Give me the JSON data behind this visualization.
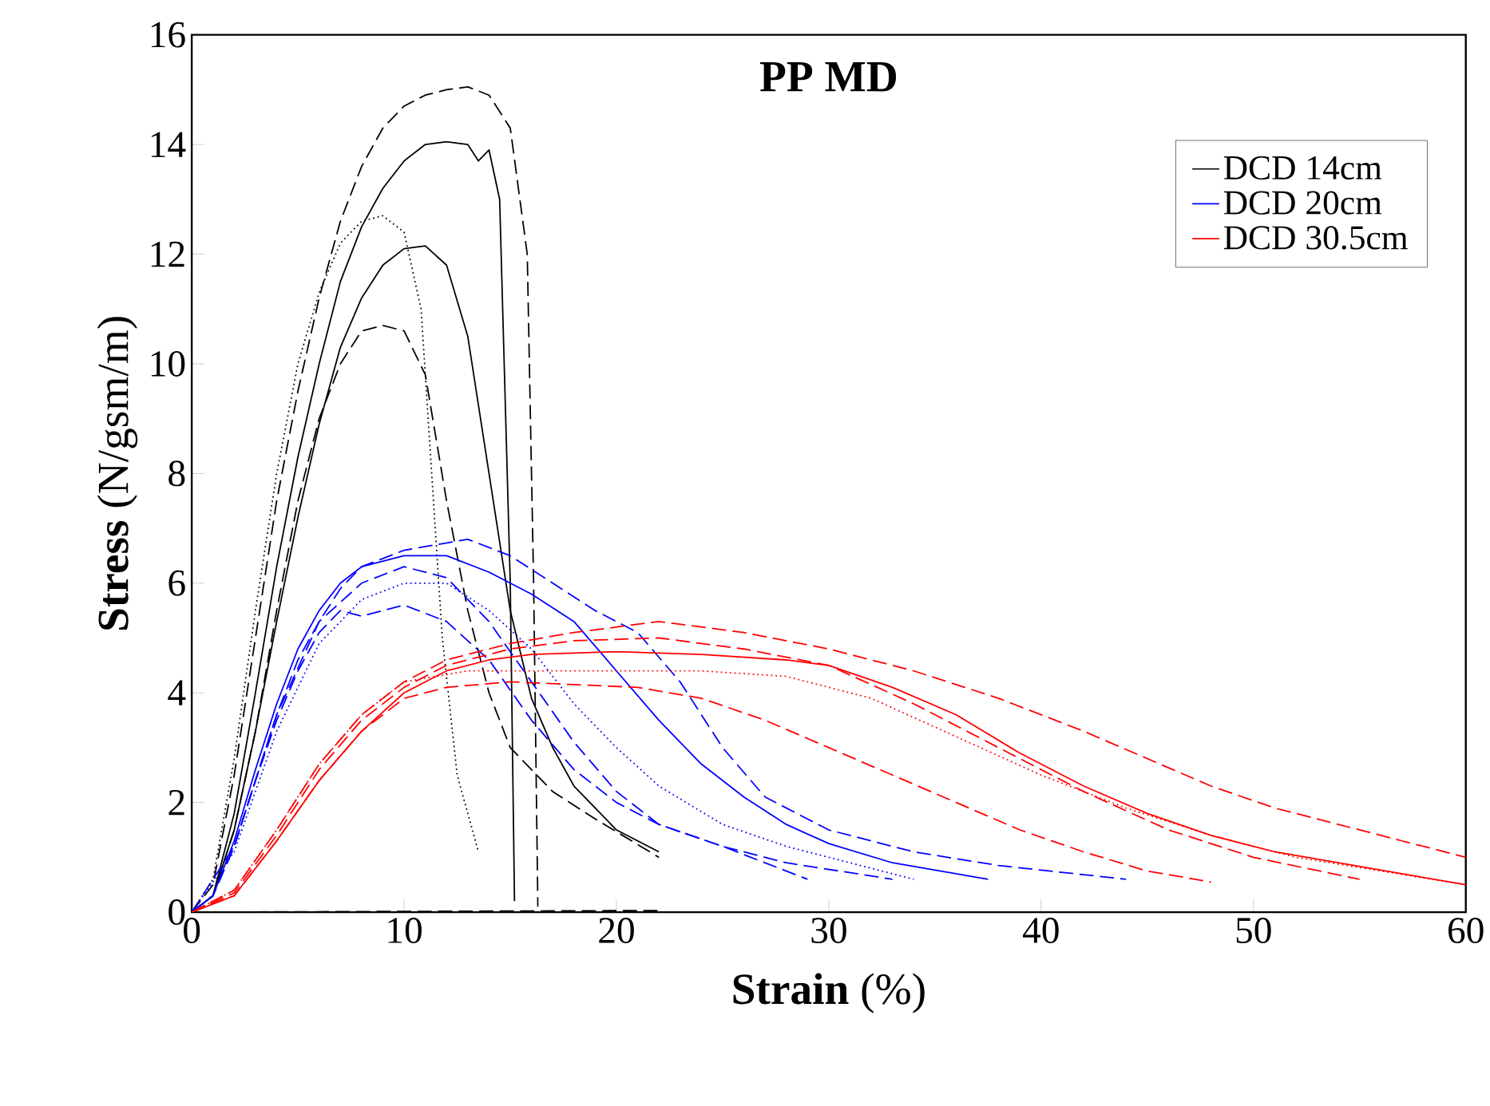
{
  "chart_data": {
    "type": "line",
    "title": "PP MD",
    "xlabel": "**Strain** (%)",
    "ylabel": "**Stress** (N/gsm/m)",
    "xlim": [
      0,
      60
    ],
    "ylim": [
      0,
      16
    ],
    "xticks": [
      0,
      10,
      20,
      30,
      40,
      50,
      60
    ],
    "yticks": [
      0,
      2,
      4,
      6,
      8,
      10,
      12,
      14,
      16
    ],
    "legend": "top right",
    "grid": false,
    "marker": "none",
    "series": [
      {
        "name": "DCD 14cm",
        "color": "#000000",
        "line_style": "solid",
        "x": [
          0,
          1,
          2,
          3,
          4,
          5,
          6,
          7,
          8,
          9,
          10,
          11,
          12,
          13,
          13.5,
          14,
          14.5,
          15,
          15.2
        ],
        "values": [
          0,
          0.3,
          1.8,
          4,
          6.3,
          8.3,
          10,
          11.5,
          12.5,
          13.2,
          13.7,
          14,
          14.05,
          14,
          13.7,
          13.9,
          13,
          6,
          0.2
        ]
      },
      {
        "color": "#000000",
        "line_style": "dashed",
        "x": [
          0,
          1,
          2,
          3,
          4,
          5,
          6,
          7,
          8,
          9,
          10,
          11,
          12,
          13,
          14,
          15,
          15.8,
          16.1,
          16.3
        ],
        "values": [
          0,
          0.5,
          2.5,
          5,
          7.5,
          9.5,
          11.2,
          12.6,
          13.6,
          14.3,
          14.7,
          14.9,
          15,
          15.05,
          14.9,
          14.3,
          12,
          6,
          0.1
        ]
      },
      {
        "color": "#000000",
        "line_style": "solid",
        "x": [
          0,
          1,
          2,
          3,
          4,
          5,
          6,
          7,
          8,
          9,
          10,
          11,
          12,
          13,
          14,
          15,
          16,
          17,
          18,
          20,
          22
        ],
        "values": [
          0,
          0.3,
          1.5,
          3.3,
          5.3,
          7.2,
          8.9,
          10.3,
          11.2,
          11.8,
          12.1,
          12.15,
          11.8,
          10.5,
          8,
          5.5,
          3.9,
          3,
          2.3,
          1.5,
          1.1
        ]
      },
      {
        "color": "#000000",
        "line_style": "dotted",
        "x": [
          0,
          1,
          2,
          3,
          4,
          5,
          6,
          7,
          8,
          9,
          10,
          10.8,
          11.3,
          11.8,
          12.5,
          13.5
        ],
        "values": [
          0,
          0.6,
          2.8,
          5.5,
          8,
          10,
          11.3,
          12.2,
          12.6,
          12.7,
          12.4,
          11,
          8,
          5,
          2.5,
          1.1
        ]
      },
      {
        "color": "#000000",
        "line_style": "dashed",
        "x": [
          0,
          1,
          2,
          3,
          4,
          5,
          6,
          7,
          8,
          9,
          10,
          11,
          12,
          13,
          14,
          15,
          17,
          19,
          22
        ],
        "values": [
          0,
          0.3,
          1.5,
          3.3,
          5.5,
          7.5,
          9,
          10,
          10.6,
          10.7,
          10.6,
          9.8,
          7.5,
          5.5,
          4,
          3,
          2.2,
          1.7,
          1
        ]
      },
      {
        "color": "#000000",
        "line_style": "dashed",
        "x": [
          0,
          22
        ],
        "values": [
          0,
          0.03
        ]
      },
      {
        "name": "DCD 20cm",
        "color": "#0000ff",
        "line_style": "solid",
        "x": [
          0,
          1,
          2,
          3,
          4,
          5,
          6,
          7,
          8,
          10,
          12,
          14,
          16,
          18,
          20,
          22,
          24,
          26,
          28,
          30,
          33,
          37.5
        ],
        "values": [
          0,
          0.3,
          1.3,
          2.6,
          3.8,
          4.8,
          5.5,
          6,
          6.3,
          6.5,
          6.5,
          6.2,
          5.8,
          5.3,
          4.4,
          3.5,
          2.7,
          2.1,
          1.6,
          1.25,
          0.9,
          0.6
        ]
      },
      {
        "color": "#0000ff",
        "line_style": "dashed",
        "x": [
          0,
          1,
          2,
          3,
          4,
          5,
          6,
          7,
          8,
          10,
          13,
          15,
          17,
          19,
          21,
          23,
          25,
          27,
          30,
          34,
          38,
          44
        ],
        "values": [
          0,
          0.3,
          1.2,
          2.4,
          3.6,
          4.6,
          5.3,
          5.9,
          6.3,
          6.6,
          6.8,
          6.5,
          6,
          5.5,
          5.1,
          4.2,
          3,
          2.1,
          1.5,
          1.1,
          0.85,
          0.6
        ]
      },
      {
        "color": "#0000ff",
        "line_style": "dashed",
        "x": [
          0,
          1,
          2,
          3,
          4,
          5,
          6,
          7,
          8,
          10,
          12,
          14,
          16,
          18,
          20,
          22,
          25,
          29
        ],
        "values": [
          0,
          0.3,
          1.2,
          2.4,
          3.5,
          4.4,
          5.1,
          5.5,
          5.4,
          5.6,
          5.3,
          4.6,
          3.5,
          2.6,
          2,
          1.6,
          1.2,
          0.6
        ]
      },
      {
        "color": "#0000ff",
        "line_style": "dotted",
        "x": [
          0,
          2,
          4,
          6,
          8,
          10,
          12,
          14,
          16,
          18,
          20,
          22,
          25,
          28,
          31,
          34
        ],
        "values": [
          0,
          1.1,
          3.3,
          4.9,
          5.7,
          6,
          6,
          5.5,
          4.8,
          3.8,
          3,
          2.3,
          1.6,
          1.2,
          0.9,
          0.6
        ]
      },
      {
        "color": "#0000ff",
        "line_style": "dashed",
        "x": [
          0,
          2,
          4,
          6,
          8,
          10,
          12,
          14,
          16,
          18,
          20,
          22,
          25,
          28,
          33
        ],
        "values": [
          0,
          1.2,
          3.6,
          5.3,
          6,
          6.3,
          6.1,
          5.3,
          4.2,
          3.1,
          2.2,
          1.6,
          1.2,
          0.9,
          0.6
        ]
      },
      {
        "name": "DCD 30.5cm",
        "color": "#ff0000",
        "line_style": "solid",
        "x": [
          0,
          2,
          4,
          6,
          8,
          10,
          12,
          14,
          16,
          20,
          24,
          28,
          30,
          33,
          36,
          39,
          42,
          45,
          48,
          51,
          54,
          57,
          60
        ],
        "values": [
          0,
          0.3,
          1.3,
          2.4,
          3.3,
          4,
          4.4,
          4.6,
          4.7,
          4.75,
          4.7,
          4.6,
          4.5,
          4.1,
          3.6,
          2.9,
          2.3,
          1.8,
          1.4,
          1.1,
          0.9,
          0.7,
          0.5
        ]
      },
      {
        "color": "#ff0000",
        "line_style": "dashed",
        "x": [
          0,
          2,
          4,
          6,
          8,
          10,
          12,
          15,
          18,
          22,
          26,
          30,
          34,
          38,
          42,
          45,
          48,
          51,
          54,
          57,
          60
        ],
        "values": [
          0,
          0.4,
          1.5,
          2.7,
          3.6,
          4.2,
          4.6,
          4.9,
          5.1,
          5.3,
          5.1,
          4.8,
          4.4,
          3.9,
          3.3,
          2.8,
          2.3,
          1.9,
          1.6,
          1.3,
          1
        ]
      },
      {
        "color": "#ff0000",
        "line_style": "dashed",
        "x": [
          0,
          2,
          4,
          6,
          8,
          10,
          12,
          15,
          18,
          21,
          24,
          27,
          30,
          33,
          36,
          39,
          42,
          45,
          48
        ],
        "values": [
          0,
          0.3,
          1.3,
          2.4,
          3.3,
          3.9,
          4.1,
          4.2,
          4.15,
          4.1,
          3.9,
          3.5,
          3,
          2.5,
          2,
          1.5,
          1.1,
          0.75,
          0.55
        ]
      },
      {
        "color": "#ff0000",
        "line_style": "dashed",
        "x": [
          0,
          2,
          4,
          6,
          8,
          10,
          12,
          15,
          18,
          22,
          26,
          30,
          34,
          38,
          42,
          46,
          50,
          55
        ],
        "values": [
          0,
          0.35,
          1.4,
          2.6,
          3.5,
          4.1,
          4.5,
          4.8,
          4.95,
          5,
          4.8,
          4.5,
          3.8,
          3,
          2.2,
          1.5,
          1,
          0.6
        ]
      },
      {
        "color": "#ff0000",
        "line_style": "dotted",
        "x": [
          0,
          2,
          4,
          6,
          8,
          10,
          13,
          16,
          20,
          24,
          28,
          32,
          36,
          40,
          44,
          48,
          52,
          56,
          60
        ],
        "values": [
          0,
          0.4,
          1.5,
          2.7,
          3.6,
          4.2,
          4.4,
          4.4,
          4.4,
          4.4,
          4.3,
          3.9,
          3.2,
          2.5,
          1.9,
          1.4,
          1,
          0.75,
          0.5
        ]
      }
    ]
  }
}
